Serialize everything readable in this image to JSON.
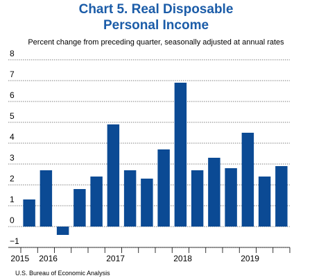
{
  "chart_data": {
    "type": "bar",
    "title_lines": [
      "Chart 5. Real Disposable",
      "Personal Income"
    ],
    "subtitle": "Percent change from preceding quarter, seasonally adjusted at annual rates",
    "source": "U.S. Bureau of Economic Analysis",
    "categories": [
      "2015",
      "2016",
      null,
      null,
      null,
      "2017",
      null,
      null,
      null,
      "2018",
      null,
      null,
      null,
      "2019",
      null,
      null
    ],
    "values": [
      1.3,
      2.7,
      -0.4,
      1.8,
      2.4,
      4.9,
      2.7,
      2.3,
      3.7,
      6.9,
      2.7,
      3.3,
      2.8,
      4.5,
      2.4,
      2.9
    ],
    "color": "#0b4a94",
    "ylim": [
      -1,
      8
    ],
    "yticks": [
      {
        "value": -1,
        "label": "−1"
      },
      0,
      1,
      2,
      3,
      4,
      5,
      6,
      7,
      8
    ],
    "grid": true
  }
}
